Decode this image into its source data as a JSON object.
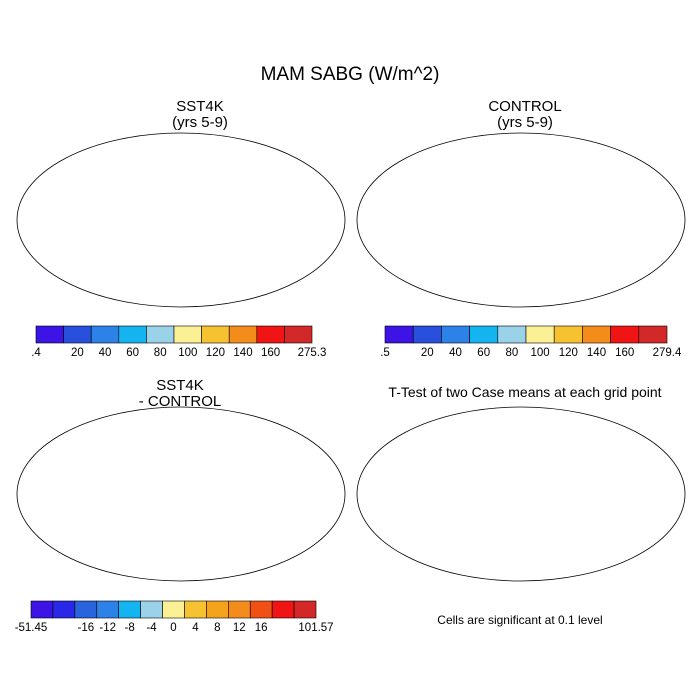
{
  "main_title": "MAM SABG (W/m^2)",
  "panels": {
    "sst4k": {
      "title_line1": "SST4K",
      "title_line2": "(yrs 5-9)"
    },
    "control": {
      "title_line1": "CONTROL",
      "title_line2": "(yrs 5-9)"
    },
    "diff": {
      "title_line1": "SST4K",
      "title_line2": "- CONTROL"
    },
    "ttest": {
      "title": "T-Test of two Case means at each grid point",
      "note": "Cells are significant at 0.1 level"
    }
  },
  "colorbars": {
    "sst4k": {
      "colors": [
        "#3c14e6",
        "#2850dc",
        "#2c82e6",
        "#14b4f0",
        "#9ad2ea",
        "#fcf094",
        "#f7c231",
        "#f48c1c",
        "#f01414",
        "#d22828"
      ],
      "labels": [
        ".4",
        "20",
        "40",
        "60",
        "80",
        "100",
        "120",
        "140",
        "160",
        "275.3"
      ]
    },
    "control": {
      "colors": [
        "#3c14e6",
        "#2850dc",
        "#2c82e6",
        "#14b4f0",
        "#9ad2ea",
        "#fcf094",
        "#f7c231",
        "#f48c1c",
        "#f01414",
        "#d22828"
      ],
      "labels": [
        ".5",
        "20",
        "40",
        "60",
        "80",
        "100",
        "120",
        "140",
        "160",
        "279.4"
      ]
    },
    "diff": {
      "colors": [
        "#3c14e6",
        "#2828e6",
        "#2864dc",
        "#2c82e6",
        "#14b4f0",
        "#9ad2ea",
        "#fcf094",
        "#f7c231",
        "#f4a41c",
        "#f48c1c",
        "#f05014",
        "#f01414",
        "#d22828"
      ],
      "labels": [
        "-51.45",
        "",
        "-16",
        "-12",
        "-8",
        "-4",
        "0",
        "4",
        "8",
        "12",
        "16",
        "",
        "101.57"
      ]
    }
  }
}
